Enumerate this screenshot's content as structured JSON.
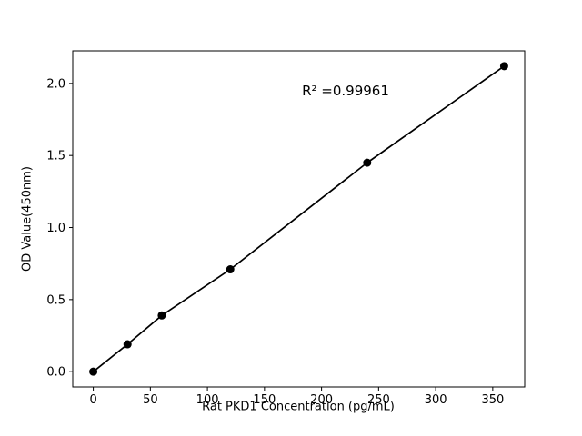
{
  "chart_data": {
    "type": "line",
    "x": [
      0,
      30,
      60,
      120,
      240,
      360
    ],
    "y": [
      0.0,
      0.19,
      0.39,
      0.71,
      1.45,
      2.12
    ],
    "title": "",
    "xlabel": "Rat PKD1 Concentration (pg/mL)",
    "ylabel": "OD Value(450nm)",
    "annotation": "R² =0.99961",
    "xlim": [
      -18,
      378
    ],
    "ylim": [
      -0.106,
      2.226
    ],
    "xticks": [
      0,
      50,
      100,
      150,
      200,
      250,
      300,
      350
    ],
    "xtick_labels": [
      "0",
      "50",
      "100",
      "150",
      "200",
      "250",
      "300",
      "350"
    ],
    "yticks": [
      0,
      0.5,
      1.0,
      1.5,
      2.0
    ],
    "ytick_labels": [
      "0.0",
      "0.5",
      "1.0",
      "1.5",
      "2.0"
    ],
    "grid": false,
    "legend": "none",
    "line_color": "#000000",
    "marker_color": "#000000",
    "axis_color": "#000000",
    "tick_label_color": "#000000",
    "background": "#ffffff"
  }
}
